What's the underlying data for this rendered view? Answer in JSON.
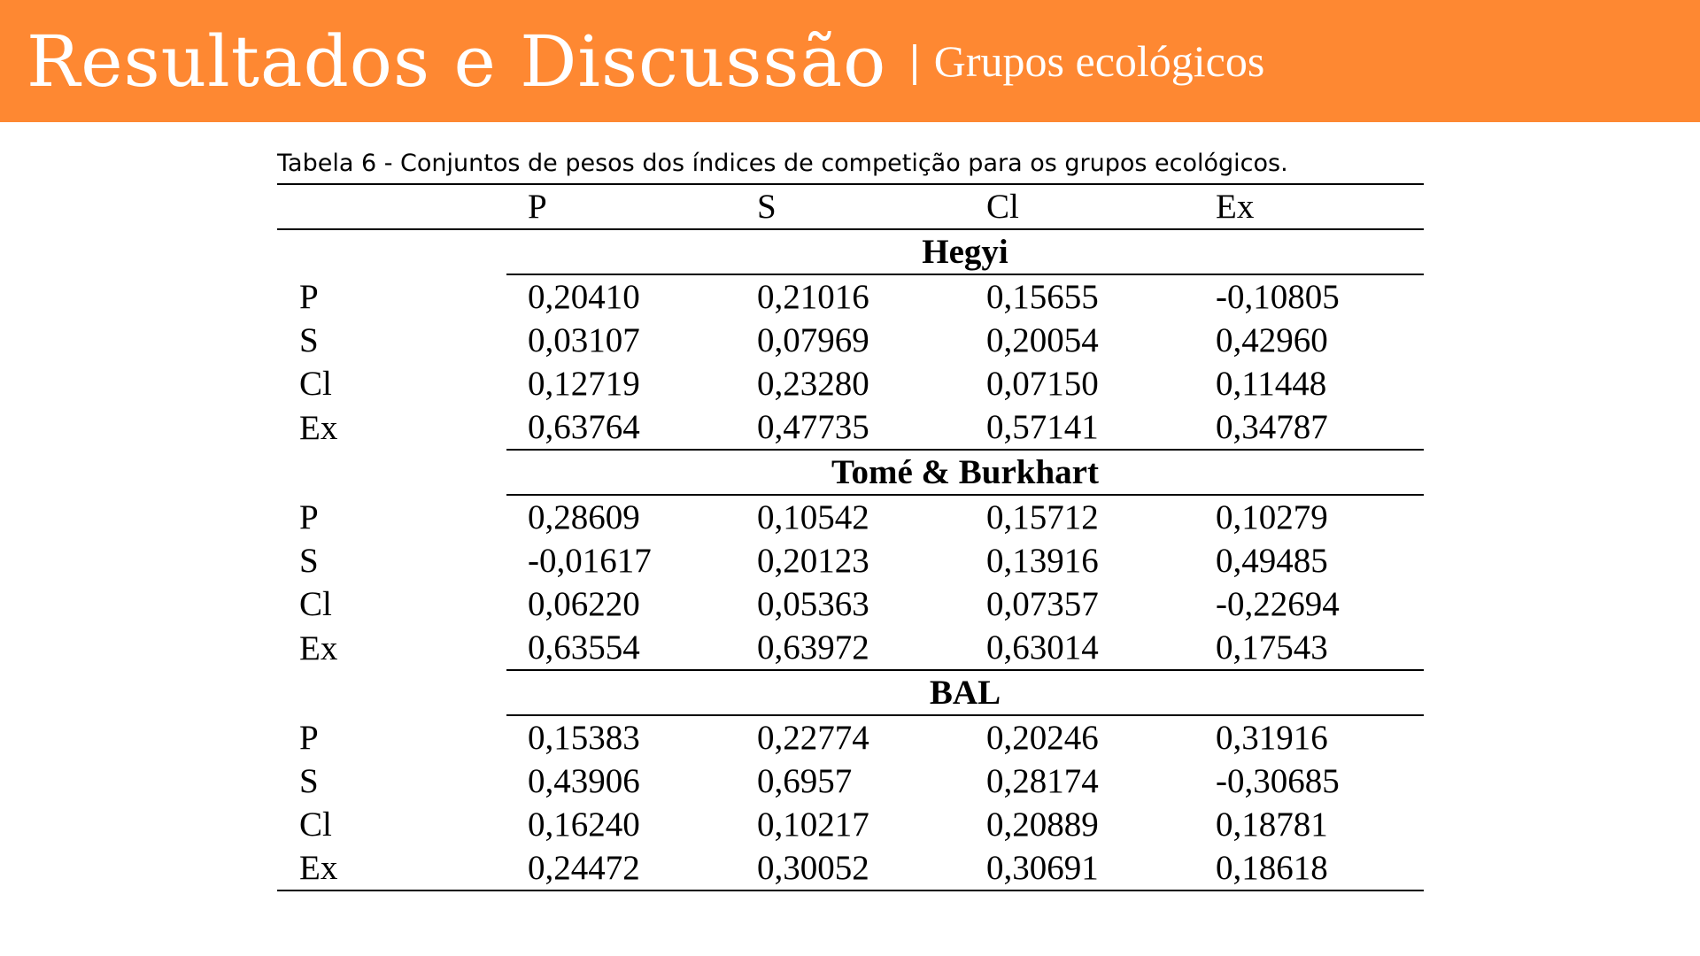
{
  "header": {
    "title": "Resultados e Discussão",
    "separator": "|",
    "subtitle": "Grupos ecológicos"
  },
  "table": {
    "caption": "Tabela 6 - Conjuntos de pesos dos índices de competição para os grupos ecológicos.",
    "columns": [
      "",
      "P",
      "S",
      "Cl",
      "Ex"
    ],
    "groups": [
      {
        "name": "Hegyi",
        "rows": [
          {
            "label": "P",
            "values": [
              "0,20410",
              "0,21016",
              "0,15655",
              "-0,10805"
            ]
          },
          {
            "label": "S",
            "values": [
              "0,03107",
              "0,07969",
              "0,20054",
              "0,42960"
            ]
          },
          {
            "label": "Cl",
            "values": [
              "0,12719",
              "0,23280",
              "0,07150",
              "0,11448"
            ]
          },
          {
            "label": "Ex",
            "values": [
              "0,63764",
              "0,47735",
              "0,57141",
              "0,34787"
            ]
          }
        ]
      },
      {
        "name": "Tomé & Burkhart",
        "rows": [
          {
            "label": "P",
            "values": [
              "0,28609",
              "0,10542",
              "0,15712",
              "0,10279"
            ]
          },
          {
            "label": "S",
            "values": [
              "-0,01617",
              "0,20123",
              "0,13916",
              "0,49485"
            ]
          },
          {
            "label": "Cl",
            "values": [
              "0,06220",
              "0,05363",
              "0,07357",
              "-0,22694"
            ]
          },
          {
            "label": "Ex",
            "values": [
              "0,63554",
              "0,63972",
              "0,63014",
              "0,17543"
            ]
          }
        ]
      },
      {
        "name": "BAL",
        "rows": [
          {
            "label": "P",
            "values": [
              "0,15383",
              "0,22774",
              "0,20246",
              "0,31916"
            ]
          },
          {
            "label": "S",
            "values": [
              "0,43906",
              "0,6957",
              "0,28174",
              "-0,30685"
            ]
          },
          {
            "label": "Cl",
            "values": [
              "0,16240",
              "0,10217",
              "0,20889",
              "0,18781"
            ]
          },
          {
            "label": "Ex",
            "values": [
              "0,24472",
              "0,30052",
              "0,30691",
              "0,18618"
            ]
          }
        ]
      }
    ]
  },
  "colors": {
    "header_background": "#fe8832",
    "header_text": "#ffffff",
    "text": "#000000"
  }
}
